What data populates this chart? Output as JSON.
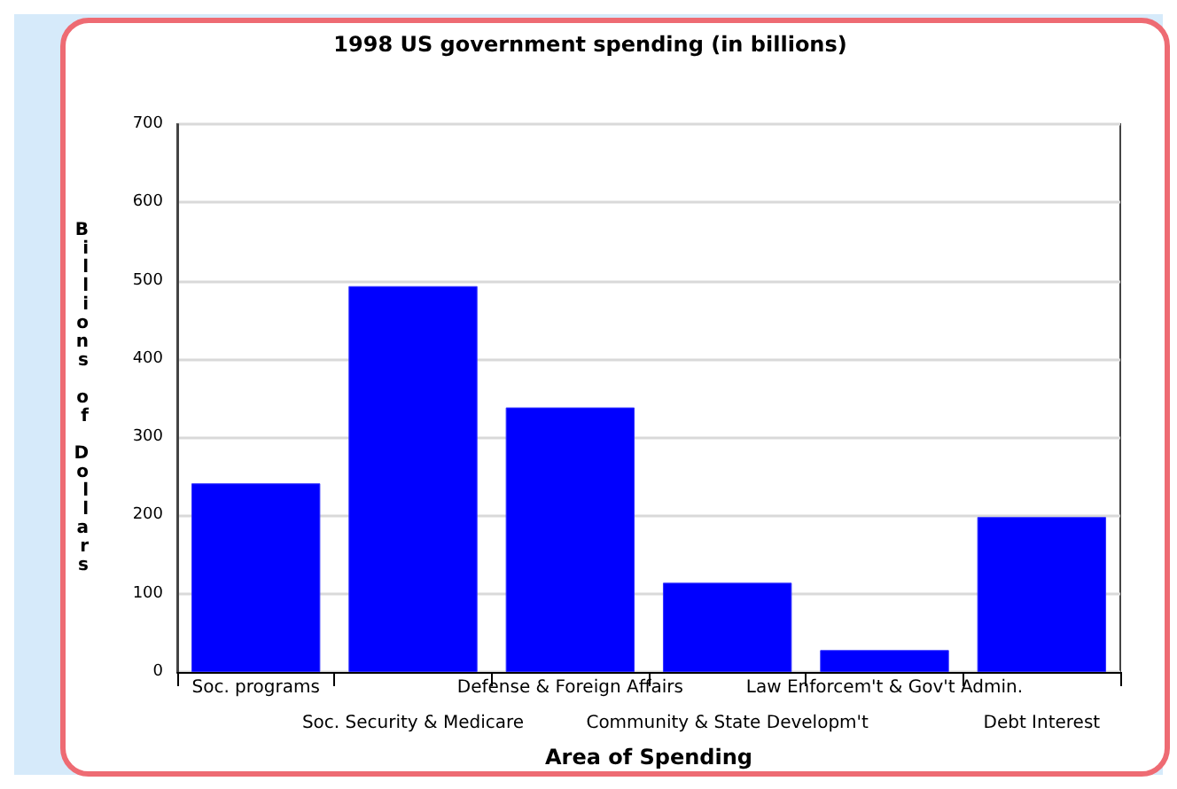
{
  "chart_data": {
    "type": "bar",
    "title": "1998 US government spending (in billions)",
    "xlabel": "Area of Spending",
    "ylabel": "Billions of Dollars",
    "categories": [
      "Soc. programs",
      "Soc. Security & Medicare",
      "Defense & Foreign Affairs",
      "Community & State Developm't",
      "Law Enforcem't & Gov't Admin.",
      "Debt Interest"
    ],
    "values": [
      241,
      493,
      338,
      114,
      28,
      198
    ],
    "color": "#0000ff",
    "ylim": [
      0,
      700
    ],
    "yticks": [
      0,
      100,
      200,
      300,
      400,
      500,
      600,
      700
    ],
    "grid": "y"
  }
}
